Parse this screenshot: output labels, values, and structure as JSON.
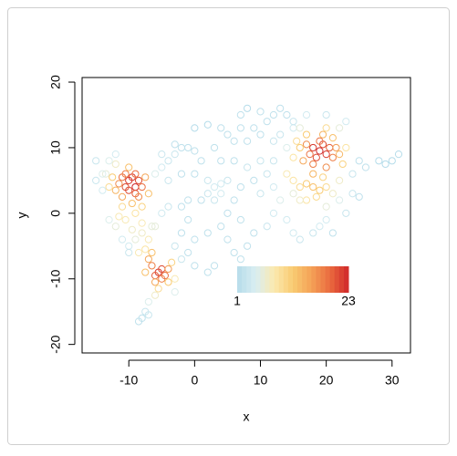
{
  "chart_data": {
    "type": "scatter",
    "x_label": "x",
    "y_label": "y",
    "xlim": [
      -17.1,
      32.8
    ],
    "ylim": [
      -21.3,
      20.7
    ],
    "xticks": [
      -10,
      0,
      10,
      20,
      30
    ],
    "yticks": [
      -20,
      -10,
      0,
      10,
      20
    ],
    "colorbar": {
      "range": [
        1,
        23
      ],
      "colors": [
        "#b5dcea",
        "#d9eef2",
        "#fbe9ae",
        "#f9cb72",
        "#f4a257",
        "#ea6b3f",
        "#d0282a"
      ]
    },
    "x": [
      -10,
      -9,
      -9.5,
      -10.5,
      -8.5,
      -11,
      -9,
      -10,
      -8,
      -11.5,
      -9,
      -10.5,
      -8.5,
      -12,
      -7.5,
      -11,
      -9.5,
      -12.5,
      -7,
      -10,
      -8,
      -11,
      -13,
      -9,
      -10.5,
      -8,
      -12,
      -13.5,
      -11.5,
      -9.5,
      -8,
      -7,
      -9,
      -7.5,
      -6.5,
      -10,
      -8.5,
      -5.5,
      -5,
      -6,
      -4.5,
      -6.5,
      -5,
      -4,
      -7,
      -6,
      -4,
      -6.5,
      -5.5,
      -7.5,
      -3.5,
      -6,
      -7,
      -7.5,
      -8,
      -8.5,
      -7,
      -3,
      -3,
      19,
      18,
      20,
      19.5,
      18.5,
      20.5,
      17.5,
      21,
      19,
      18,
      20,
      17,
      21.5,
      16.5,
      22,
      19.5,
      18,
      17,
      21,
      16,
      22.5,
      15.5,
      20,
      23,
      15,
      18,
      17,
      19,
      16,
      20,
      18.5,
      15,
      17,
      14,
      21,
      16,
      19.5,
      15,
      -6,
      -5,
      -4,
      -3,
      -2,
      -5,
      -3,
      -1,
      0,
      1,
      -4,
      -2,
      0,
      2,
      3,
      4,
      5,
      2,
      4,
      3,
      1,
      -1,
      -2,
      -4,
      -5,
      0,
      2,
      4,
      5,
      6,
      7,
      7,
      8,
      10,
      11,
      12,
      13,
      14,
      15,
      15,
      9,
      8,
      10,
      12,
      13,
      14,
      3,
      4,
      6,
      8,
      10,
      12,
      11,
      9,
      7,
      10,
      12,
      13,
      6,
      5,
      7,
      4,
      2,
      0,
      -1,
      -2,
      0,
      2,
      3,
      -2,
      -3,
      -1,
      5,
      6,
      7,
      8,
      9,
      11,
      12,
      14,
      15,
      16,
      18,
      19,
      20,
      20,
      22,
      24,
      25,
      23,
      21,
      22,
      24,
      25,
      26,
      28,
      29,
      30,
      31,
      22,
      23,
      20,
      17,
      16,
      -15,
      -15,
      -14,
      -14,
      -13,
      -12,
      -11,
      -12,
      -10,
      -13,
      -6
    ],
    "series": [
      {
        "values": [
          5,
          4,
          5.5,
          4,
          5,
          5.5,
          3,
          3.5,
          4,
          4.5,
          6,
          6,
          2.5,
          3.5,
          5.5,
          2.5,
          1.5,
          5.5,
          3,
          7,
          1,
          1,
          4,
          0,
          -1,
          -1.5,
          7.5,
          6,
          -0.5,
          -2.5,
          -3,
          -4,
          -4,
          -5.5,
          -2,
          -5,
          -6,
          -9,
          -8.5,
          -9.5,
          -9.5,
          -8,
          -10,
          -8.5,
          -7,
          -10.5,
          -10.5,
          -6,
          -11.5,
          -9,
          -7.5,
          -12.5,
          -13.5,
          -15,
          -16,
          -16.5,
          -15.5,
          -10,
          -12,
          9.5,
          10,
          9,
          10.5,
          8.5,
          10,
          9,
          8.5,
          11,
          7.5,
          7,
          10.5,
          10,
          8,
          9,
          12,
          6,
          12,
          11.5,
          10,
          7.5,
          11,
          13,
          10,
          8.5,
          4,
          4.5,
          3.5,
          4,
          4,
          2.5,
          5,
          2,
          6,
          3,
          2,
          5.5,
          3,
          6,
          7,
          8,
          9,
          10,
          9,
          10.5,
          10,
          9.5,
          8,
          5,
          6,
          6,
          5,
          4,
          4.5,
          5,
          3,
          3,
          2,
          2,
          2,
          1,
          1,
          0,
          13,
          13.5,
          13,
          12,
          11,
          13,
          15,
          16,
          15.5,
          14,
          15,
          16,
          15,
          13,
          14,
          13,
          11,
          12,
          11,
          12,
          10,
          10,
          8,
          8,
          7,
          8,
          8,
          6,
          5,
          4,
          3,
          4,
          2,
          2,
          0,
          -1,
          -2,
          -3,
          -4,
          -6,
          -7,
          -8,
          -9,
          -8,
          -3,
          -5,
          -1,
          -4,
          -6,
          -7,
          -5,
          -3,
          -2,
          0,
          -1,
          -3,
          -4,
          -3,
          -2,
          -1,
          1,
          2,
          3,
          2.5,
          0,
          -3,
          5,
          6,
          8,
          7,
          8,
          7.5,
          8,
          9,
          13,
          14,
          15,
          15,
          13,
          8,
          5,
          3.5,
          6,
          8,
          9,
          -4,
          -2,
          -6,
          -1,
          -2
        ],
        "density": [
          22,
          23,
          22,
          21,
          21,
          19,
          20,
          21,
          19,
          17,
          19,
          18,
          17,
          14,
          15,
          15,
          13,
          12,
          13,
          13,
          11,
          10,
          10,
          9,
          8,
          8,
          7,
          6,
          8,
          7,
          7,
          8,
          6,
          9,
          6,
          4,
          8,
          22,
          21,
          20,
          19,
          18,
          18,
          16,
          15,
          15,
          12,
          13,
          10,
          13,
          11,
          7,
          5,
          3,
          2,
          2,
          3,
          8,
          5,
          23,
          22,
          22,
          21,
          21,
          20,
          19,
          18,
          19,
          18,
          17,
          17,
          16,
          15,
          14,
          14,
          14,
          12,
          13,
          12,
          11,
          10,
          10,
          9,
          9,
          13,
          12,
          12,
          10,
          10,
          10,
          9,
          9,
          8,
          7,
          7,
          11,
          6,
          5,
          4,
          3,
          3,
          2,
          3,
          2,
          2,
          2,
          2,
          3,
          2,
          2,
          3,
          4,
          4,
          3,
          3,
          4,
          3,
          2,
          2,
          2,
          3,
          4,
          1,
          1,
          2,
          2,
          2,
          2,
          2,
          1,
          2,
          2,
          2,
          2,
          2,
          4,
          3,
          2,
          2,
          2,
          3,
          3,
          5,
          2,
          2,
          2,
          3,
          3,
          3,
          3,
          2,
          2,
          3,
          4,
          5,
          2,
          2,
          2,
          2,
          2,
          2,
          2,
          3,
          2,
          2,
          2,
          2,
          3,
          2,
          2,
          2,
          2,
          2,
          2,
          3,
          4,
          4,
          4,
          3,
          3,
          4,
          4,
          6,
          5,
          3,
          2,
          3,
          2,
          7,
          3,
          2,
          2,
          1,
          1,
          1,
          1,
          6,
          4,
          3,
          4,
          6,
          3,
          3,
          4,
          5,
          5,
          4,
          4,
          6,
          3,
          5,
          6
        ]
      }
    ]
  }
}
